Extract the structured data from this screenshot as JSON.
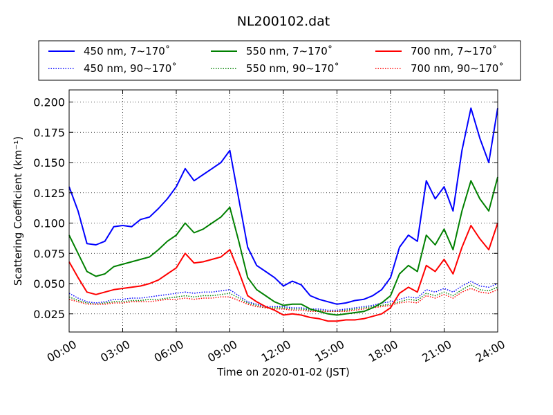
{
  "chart_data": {
    "type": "line",
    "title": "NL200102.dat",
    "xlabel": "Time on 2020-01-02 (JST)",
    "ylabel": "Scattering Coefficient (km⁻¹)",
    "xlim": [
      0,
      24
    ],
    "ylim": [
      0.01,
      0.21
    ],
    "grid": true,
    "legend_position": "top",
    "x_ticks": [
      0,
      3,
      6,
      9,
      12,
      15,
      18,
      21,
      24
    ],
    "x_tick_labels": [
      "00:00",
      "03:00",
      "06:00",
      "09:00",
      "12:00",
      "15:00",
      "18:00",
      "21:00",
      "24:00"
    ],
    "y_ticks": [
      0.025,
      0.05,
      0.075,
      0.1,
      0.125,
      0.15,
      0.175,
      0.2
    ],
    "y_tick_labels": [
      "0.025",
      "0.050",
      "0.075",
      "0.100",
      "0.125",
      "0.150",
      "0.175",
      "0.200"
    ],
    "x": [
      0,
      0.5,
      1,
      1.5,
      2,
      2.5,
      3,
      3.5,
      4,
      4.5,
      5,
      5.5,
      6,
      6.5,
      7,
      7.5,
      8,
      8.5,
      9,
      9.5,
      10,
      10.5,
      11,
      11.5,
      12,
      12.5,
      13,
      13.5,
      14,
      14.5,
      15,
      15.5,
      16,
      16.5,
      17,
      17.5,
      18,
      18.5,
      19,
      19.5,
      20,
      20.5,
      21,
      21.5,
      22,
      22.5,
      23,
      23.5,
      24
    ],
    "series": [
      {
        "name": "450 nm, 7∼170˚",
        "color": "#0000ff",
        "style": "solid",
        "values": [
          0.13,
          0.11,
          0.083,
          0.082,
          0.085,
          0.097,
          0.098,
          0.097,
          0.103,
          0.105,
          0.112,
          0.12,
          0.13,
          0.145,
          0.135,
          0.14,
          0.145,
          0.15,
          0.16,
          0.12,
          0.08,
          0.065,
          0.06,
          0.055,
          0.048,
          0.052,
          0.049,
          0.04,
          0.037,
          0.035,
          0.033,
          0.034,
          0.036,
          0.037,
          0.04,
          0.045,
          0.055,
          0.08,
          0.09,
          0.085,
          0.135,
          0.12,
          0.13,
          0.11,
          0.16,
          0.195,
          0.17,
          0.15,
          0.195
        ]
      },
      {
        "name": "550 nm, 7∼170˚",
        "color": "#008000",
        "style": "solid",
        "values": [
          0.09,
          0.075,
          0.06,
          0.056,
          0.058,
          0.064,
          0.066,
          0.068,
          0.07,
          0.072,
          0.078,
          0.085,
          0.09,
          0.1,
          0.092,
          0.095,
          0.1,
          0.105,
          0.113,
          0.085,
          0.055,
          0.045,
          0.04,
          0.035,
          0.032,
          0.033,
          0.033,
          0.029,
          0.027,
          0.025,
          0.024,
          0.025,
          0.026,
          0.027,
          0.03,
          0.034,
          0.04,
          0.058,
          0.065,
          0.06,
          0.09,
          0.082,
          0.095,
          0.078,
          0.11,
          0.135,
          0.12,
          0.11,
          0.138
        ]
      },
      {
        "name": "700 nm, 7∼170˚",
        "color": "#ff0000",
        "style": "solid",
        "values": [
          0.068,
          0.055,
          0.043,
          0.041,
          0.043,
          0.045,
          0.046,
          0.047,
          0.048,
          0.05,
          0.053,
          0.058,
          0.063,
          0.075,
          0.067,
          0.068,
          0.07,
          0.072,
          0.078,
          0.06,
          0.04,
          0.035,
          0.031,
          0.028,
          0.024,
          0.025,
          0.024,
          0.022,
          0.021,
          0.019,
          0.019,
          0.02,
          0.02,
          0.021,
          0.023,
          0.025,
          0.03,
          0.042,
          0.047,
          0.043,
          0.065,
          0.06,
          0.07,
          0.058,
          0.08,
          0.098,
          0.087,
          0.078,
          0.1
        ]
      },
      {
        "name": "450 nm, 90∼170˚",
        "color": "#0000ff",
        "style": "dotted",
        "values": [
          0.042,
          0.038,
          0.035,
          0.034,
          0.035,
          0.037,
          0.037,
          0.038,
          0.038,
          0.039,
          0.04,
          0.041,
          0.042,
          0.043,
          0.042,
          0.043,
          0.043,
          0.044,
          0.045,
          0.04,
          0.035,
          0.033,
          0.031,
          0.031,
          0.031,
          0.03,
          0.03,
          0.029,
          0.029,
          0.028,
          0.028,
          0.029,
          0.03,
          0.031,
          0.032,
          0.034,
          0.035,
          0.037,
          0.039,
          0.038,
          0.045,
          0.043,
          0.046,
          0.043,
          0.048,
          0.052,
          0.048,
          0.047,
          0.05
        ]
      },
      {
        "name": "550 nm, 90∼170˚",
        "color": "#008000",
        "style": "dotted",
        "values": [
          0.039,
          0.036,
          0.034,
          0.033,
          0.034,
          0.035,
          0.035,
          0.036,
          0.036,
          0.037,
          0.037,
          0.038,
          0.039,
          0.04,
          0.039,
          0.04,
          0.04,
          0.041,
          0.042,
          0.038,
          0.034,
          0.032,
          0.03,
          0.03,
          0.03,
          0.029,
          0.029,
          0.028,
          0.028,
          0.027,
          0.027,
          0.028,
          0.029,
          0.03,
          0.031,
          0.032,
          0.033,
          0.035,
          0.037,
          0.036,
          0.042,
          0.04,
          0.043,
          0.04,
          0.045,
          0.049,
          0.045,
          0.044,
          0.047
        ]
      },
      {
        "name": "700 nm, 90∼170˚",
        "color": "#ff0000",
        "style": "dotted",
        "values": [
          0.037,
          0.035,
          0.033,
          0.033,
          0.033,
          0.034,
          0.034,
          0.035,
          0.035,
          0.035,
          0.036,
          0.037,
          0.037,
          0.038,
          0.037,
          0.038,
          0.038,
          0.039,
          0.039,
          0.036,
          0.033,
          0.031,
          0.03,
          0.029,
          0.029,
          0.028,
          0.028,
          0.027,
          0.027,
          0.027,
          0.027,
          0.027,
          0.028,
          0.029,
          0.03,
          0.031,
          0.032,
          0.034,
          0.035,
          0.034,
          0.04,
          0.038,
          0.041,
          0.038,
          0.043,
          0.046,
          0.043,
          0.042,
          0.045
        ]
      }
    ],
    "legend_order": [
      0,
      1,
      2,
      3,
      4,
      5
    ]
  }
}
